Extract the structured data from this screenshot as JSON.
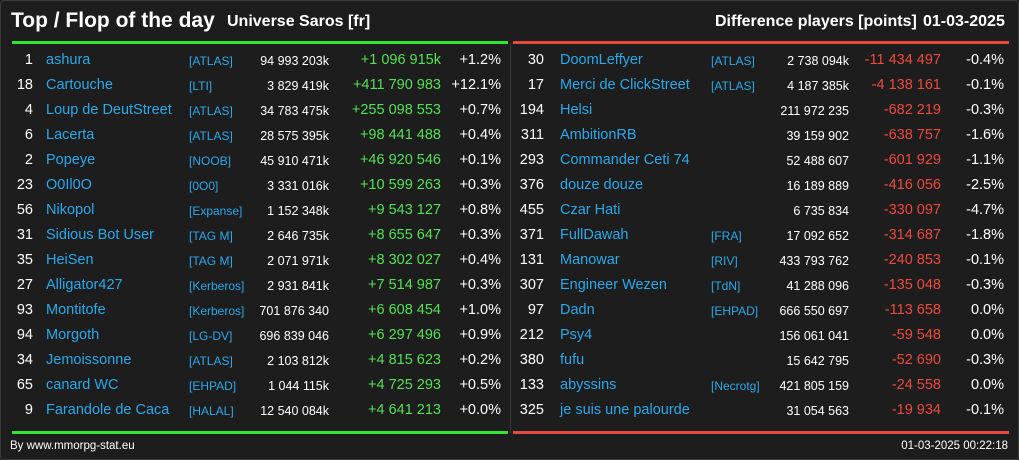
{
  "header": {
    "title": "Top / Flop of the day",
    "universe": "Universe Saros [fr]",
    "difference": "Difference players [points]",
    "date": "01-03-2025"
  },
  "top": [
    {
      "rank": "1",
      "name": "ashura",
      "tag": "[ATLAS]",
      "points": "94 993 203k",
      "delta": "+1 096 915k",
      "pct": "+1.2%"
    },
    {
      "rank": "18",
      "name": "Cartouche",
      "tag": "[LTI]",
      "points": "3 829 419k",
      "delta": "+411 790 983",
      "pct": "+12.1%"
    },
    {
      "rank": "4",
      "name": "Loup de DeutStreet",
      "tag": "[ATLAS]",
      "points": "34 783 475k",
      "delta": "+255 098 553",
      "pct": "+0.7%"
    },
    {
      "rank": "6",
      "name": "Lacerta",
      "tag": "[ATLAS]",
      "points": "28 575 395k",
      "delta": "+98 441 488",
      "pct": "+0.4%"
    },
    {
      "rank": "2",
      "name": "Popeye",
      "tag": "[NOOB]",
      "points": "45 910 471k",
      "delta": "+46 920 546",
      "pct": "+0.1%"
    },
    {
      "rank": "23",
      "name": "O0Il0O",
      "tag": "[0O0]",
      "points": "3 331 016k",
      "delta": "+10 599 263",
      "pct": "+0.3%"
    },
    {
      "rank": "56",
      "name": "Nikopol",
      "tag": "[Expanse]",
      "points": "1 152 348k",
      "delta": "+9 543 127",
      "pct": "+0.8%"
    },
    {
      "rank": "31",
      "name": "Sidious Bot User",
      "tag": "[TAG M]",
      "points": "2 646 735k",
      "delta": "+8 655 647",
      "pct": "+0.3%"
    },
    {
      "rank": "35",
      "name": "HeiSen",
      "tag": "[TAG M]",
      "points": "2 071 971k",
      "delta": "+8 302 027",
      "pct": "+0.4%"
    },
    {
      "rank": "27",
      "name": "Alligator427",
      "tag": "[Kerberos]",
      "points": "2 931 841k",
      "delta": "+7 514 987",
      "pct": "+0.3%"
    },
    {
      "rank": "93",
      "name": "Montitofe",
      "tag": "[Kerberos]",
      "points": "701 876 340",
      "delta": "+6 608 454",
      "pct": "+1.0%"
    },
    {
      "rank": "94",
      "name": "Morgoth",
      "tag": "[LG-DV]",
      "points": "696 839 046",
      "delta": "+6 297 496",
      "pct": "+0.9%"
    },
    {
      "rank": "34",
      "name": "Jemoissonne",
      "tag": "[ATLAS]",
      "points": "2 103 812k",
      "delta": "+4 815 623",
      "pct": "+0.2%"
    },
    {
      "rank": "65",
      "name": "canard WC",
      "tag": "[EHPAD]",
      "points": "1 044 115k",
      "delta": "+4 725 293",
      "pct": "+0.5%"
    },
    {
      "rank": "9",
      "name": "Farandole de Caca",
      "tag": "[HALAL]",
      "points": "12 540 084k",
      "delta": "+4 641 213",
      "pct": "+0.0%"
    }
  ],
  "flop": [
    {
      "rank": "30",
      "name": "DoomLeffyer",
      "tag": "[ATLAS]",
      "points": "2 738 094k",
      "delta": "-11 434 497",
      "pct": "-0.4%"
    },
    {
      "rank": "17",
      "name": "Merci de ClickStreet",
      "tag": "[ATLAS]",
      "points": "4 187 385k",
      "delta": "-4 138 161",
      "pct": "-0.1%"
    },
    {
      "rank": "194",
      "name": "Helsi",
      "tag": "",
      "points": "211 972 235",
      "delta": "-682 219",
      "pct": "-0.3%"
    },
    {
      "rank": "311",
      "name": "AmbitionRB",
      "tag": "",
      "points": "39 159 902",
      "delta": "-638 757",
      "pct": "-1.6%"
    },
    {
      "rank": "293",
      "name": "Commander Ceti 74",
      "tag": "",
      "points": "52 488 607",
      "delta": "-601 929",
      "pct": "-1.1%"
    },
    {
      "rank": "376",
      "name": "douze douze",
      "tag": "",
      "points": "16 189 889",
      "delta": "-416 056",
      "pct": "-2.5%"
    },
    {
      "rank": "455",
      "name": "Czar Hati",
      "tag": "",
      "points": "6 735 834",
      "delta": "-330 097",
      "pct": "-4.7%"
    },
    {
      "rank": "371",
      "name": "FullDawah",
      "tag": "[FRA]",
      "points": "17 092 652",
      "delta": "-314 687",
      "pct": "-1.8%"
    },
    {
      "rank": "131",
      "name": "Manowar",
      "tag": "[RIV]",
      "points": "433 793 762",
      "delta": "-240 853",
      "pct": "-0.1%"
    },
    {
      "rank": "307",
      "name": "Engineer Wezen",
      "tag": "[TdN]",
      "points": "41 288 096",
      "delta": "-135 048",
      "pct": "-0.3%"
    },
    {
      "rank": "97",
      "name": "Dadn",
      "tag": "[EHPAD]",
      "points": "666 550 697",
      "delta": "-113 658",
      "pct": "0.0%"
    },
    {
      "rank": "212",
      "name": "Psy4",
      "tag": "",
      "points": "156 061 041",
      "delta": "-59 548",
      "pct": "0.0%"
    },
    {
      "rank": "380",
      "name": "fufu",
      "tag": "",
      "points": "15 642 795",
      "delta": "-52 690",
      "pct": "-0.3%"
    },
    {
      "rank": "133",
      "name": "abyssins",
      "tag": "[Necrotg]",
      "points": "421 805 159",
      "delta": "-24 558",
      "pct": "0.0%"
    },
    {
      "rank": "325",
      "name": "je suis une palourde",
      "tag": "",
      "points": "31 054 563",
      "delta": "-19 934",
      "pct": "-0.1%"
    }
  ],
  "footer": {
    "source": "By www.mmorpg-stat.eu",
    "timestamp": "01-03-2025 00:22:18"
  },
  "colors": {
    "background": "#1d1d1d",
    "name": "#2ea8ea",
    "positive": "#55e055",
    "negative": "#ee4a3f",
    "top_line": "#33e533",
    "flop_line": "#e54a3f"
  }
}
